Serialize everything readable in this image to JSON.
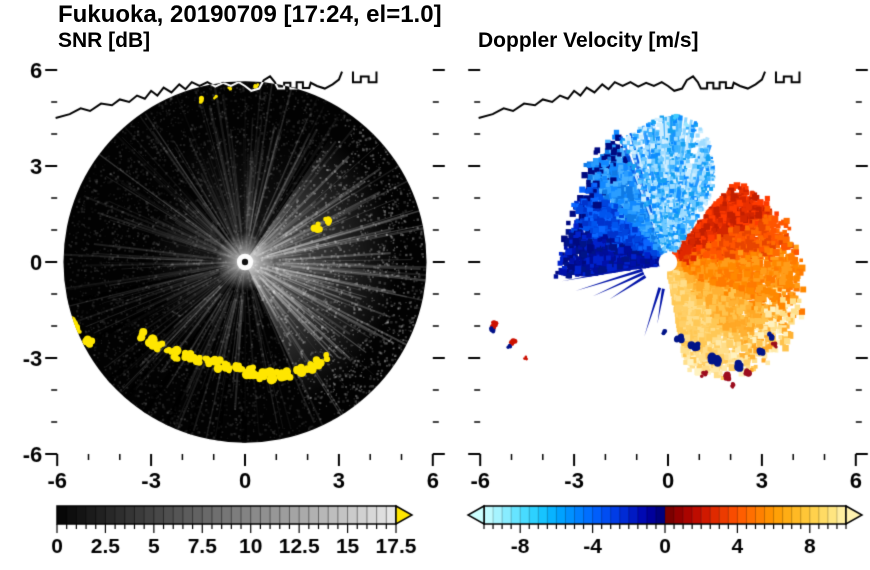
{
  "figure": {
    "title": "Fukuoka, 20190709 [17:24, el=1.0]"
  },
  "panels": [
    {
      "id": "snr",
      "title": "SNR [dB]",
      "xtick_labels": [
        "-6",
        "-3",
        "0",
        "3",
        "6"
      ],
      "ytick_labels": [
        "6",
        "3",
        "0",
        "-3",
        "-6"
      ],
      "colorbar_tick_labels": [
        "0",
        "2.5",
        "5",
        "7.5",
        "10",
        "12.5",
        "15",
        "17.5"
      ]
    },
    {
      "id": "doppler",
      "title": "Doppler Velocity [m/s]",
      "xtick_labels": [
        "-6",
        "-3",
        "0",
        "3",
        "6"
      ],
      "colorbar_tick_labels": [
        "-8",
        "-4",
        "0",
        "4",
        "8"
      ]
    }
  ],
  "chart_data": [
    {
      "type": "heatmap",
      "panel": "left",
      "title": "SNR [dB]",
      "site": "Fukuoka",
      "date": "20190709",
      "time": "17:24",
      "elevation_deg": 1.0,
      "xlim": [
        -6,
        6
      ],
      "ylim": [
        -6,
        6
      ],
      "xtick_values": [
        -6,
        -3,
        0,
        3,
        6
      ],
      "ytick_values": [
        6,
        3,
        0,
        -3,
        -6
      ],
      "grid": false,
      "scan_radius": 5.8,
      "colorbar": {
        "min": 0,
        "max": 17.5,
        "minor_step": 0.5,
        "tick_values": [
          0,
          2.5,
          5,
          7.5,
          10,
          12.5,
          15,
          17.5
        ],
        "start_color": "#000000",
        "end_color": "#e8e8e8",
        "overflow_color": "#ffe600",
        "overflow_arrow": "right"
      },
      "features": [
        "dark full-circle radar scan disk centered on the radar at (0,0)",
        "brighter diffuse echo sector east of the radar with fine radial streaks",
        "fan of dark beam-blockage spokes toward the south and southwest",
        "bright white saturation spot at the radar location with a dark center pixel",
        "saturated yellow (>17.5 dB) ground-clutter arc along the southern coastline from about (-3.3,-2.3) to (2.6,-3.0)",
        "isolated yellow clutter patches near (-5.6,-1.9), (-5.0,-2.6), (2.3,1.1), (2.6,1.3) and tiny ones along the northern coastline",
        "coastline of Hakata Bay drawn in white where it crosses the dark disk"
      ]
    },
    {
      "type": "heatmap",
      "panel": "right",
      "title": "Doppler Velocity [m/s]",
      "site": "Fukuoka",
      "date": "20190709",
      "time": "17:24",
      "elevation_deg": 1.0,
      "xlim": [
        -6,
        6
      ],
      "ylim": [
        -6,
        6
      ],
      "xtick_values": [
        -6,
        -3,
        0,
        3,
        6
      ],
      "ytick_values": [
        6,
        3,
        0,
        -3,
        -6
      ],
      "grid": false,
      "colorbar": {
        "min": -10,
        "max": 10,
        "minor_step": 0.5,
        "tick_values": [
          -8,
          -4,
          0,
          4,
          8
        ],
        "arrows": "both",
        "stops": [
          {
            "v": -10,
            "c": "#ccffff"
          },
          {
            "v": -9,
            "c": "#99f0ff"
          },
          {
            "v": -8,
            "c": "#55e0ff"
          },
          {
            "v": -7,
            "c": "#1fccff"
          },
          {
            "v": -6,
            "c": "#00aaff"
          },
          {
            "v": -5,
            "c": "#0088ff"
          },
          {
            "v": -4,
            "c": "#0066ff"
          },
          {
            "v": -3,
            "c": "#0044ee"
          },
          {
            "v": -2,
            "c": "#0022cc"
          },
          {
            "v": -1,
            "c": "#0000aa"
          },
          {
            "v": -0.01,
            "c": "#000070"
          },
          {
            "v": 0.01,
            "c": "#700000"
          },
          {
            "v": 1,
            "c": "#a00000"
          },
          {
            "v": 2,
            "c": "#c81000"
          },
          {
            "v": 3,
            "c": "#e63200"
          },
          {
            "v": 4,
            "c": "#ff5500"
          },
          {
            "v": 5,
            "c": "#ff7700"
          },
          {
            "v": 6,
            "c": "#ff9900"
          },
          {
            "v": 7,
            "c": "#ffb31a"
          },
          {
            "v": 8,
            "c": "#ffcc40"
          },
          {
            "v": 9,
            "c": "#ffe070"
          },
          {
            "v": 10,
            "c": "#fff2b0"
          }
        ]
      },
      "features": [
        "negative (approaching, cyan-blue) Doppler velocities in a fan from north through west of the radar, about -2 to -9 m/s",
        "light cyan radial streaks (about -7 to -9 m/s) toward the north at 2-4.5 km range",
        "dark navy spikes (about -1 to -2 m/s) pointing west-southwest near (-3,-1)",
        "positive (receding, red-orange-yellow) velocities east to southeast, about +2 to +8 m/s",
        "red core (about +3 m/s) on the northeast side of the fan grading to orange-yellow (+6 to +8 m/s) toward the southeast",
        "dark navy and dark red aliasing specks along the southern edge of the echo region",
        "isolated clutter specks near (-5.6,-2.0) and (-5.0,-2.6)",
        "white dot at the radar location, black coastline across the top of the panel"
      ]
    }
  ]
}
